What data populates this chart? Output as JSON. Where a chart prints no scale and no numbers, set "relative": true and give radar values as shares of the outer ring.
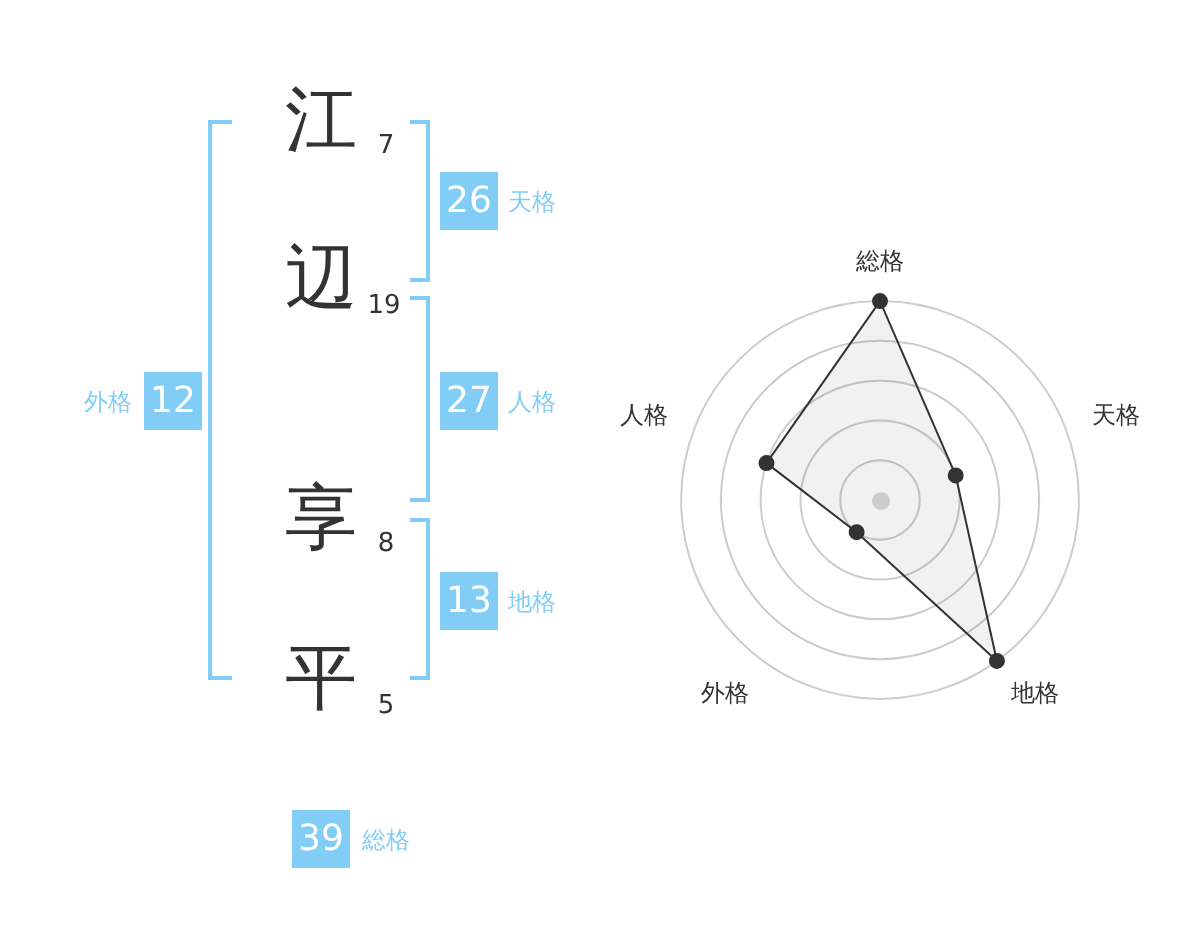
{
  "chart_data": [
    {
      "type": "other",
      "annotations": [
        "江",
        "7",
        "26",
        "天格",
        "辺",
        "19",
        "外格",
        "12",
        "27",
        "人格",
        "享",
        "8",
        "13",
        "地格",
        "平",
        "5",
        "39",
        "総格"
      ]
    },
    {
      "type": "radar",
      "categories": [
        "総格",
        "天格",
        "地格",
        "外格",
        "人格"
      ],
      "relative": true,
      "grid": true,
      "marker": "circle",
      "series": [
        {
          "color": "#333333",
          "values": [
            1,
            0.4,
            1,
            0.2,
            0.6
          ]
        }
      ]
    }
  ]
}
